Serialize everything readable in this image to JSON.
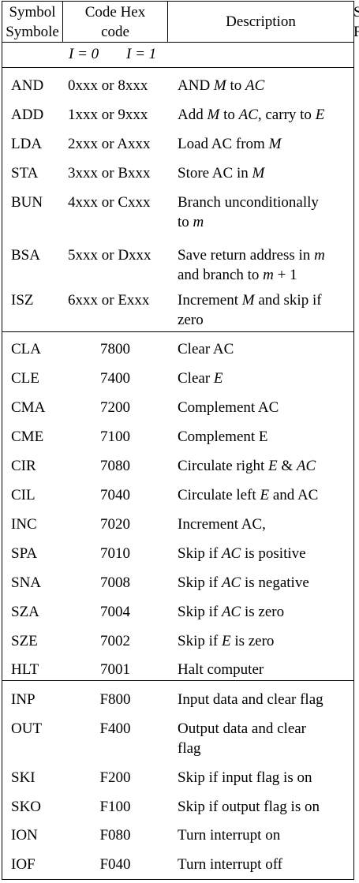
{
  "header": {
    "symbol_line1": "Symbol",
    "symbol_line2": "Symbole",
    "code_line1": "Code Hex",
    "code_line2": "code",
    "description": "Description",
    "i_zero": "I = 0",
    "i_one": "I = 1",
    "cut_top": "S",
    "cut_bottom": "F"
  },
  "rows": [
    {
      "symbol": "AND",
      "code": "0xxx or 8xxx",
      "desc": [
        {
          "t": "AND "
        },
        {
          "t": "M",
          "i": true
        },
        {
          "t": " to "
        },
        {
          "t": "AC",
          "i": true
        }
      ]
    },
    {
      "symbol": "ADD",
      "code": "1xxx or 9xxx",
      "desc": [
        {
          "t": "Add "
        },
        {
          "t": "M",
          "i": true
        },
        {
          "t": " to "
        },
        {
          "t": "AC,",
          "i": true
        },
        {
          "t": " carry to "
        },
        {
          "t": "E",
          "i": true
        }
      ]
    },
    {
      "symbol": "LDA",
      "code": "2xxx or Axxx",
      "desc": [
        {
          "t": "Load AC from  "
        },
        {
          "t": "M",
          "i": true
        }
      ]
    },
    {
      "symbol": "STA",
      "code": "3xxx or Bxxx",
      "desc": [
        {
          "t": "Store AC in "
        },
        {
          "t": "M",
          "i": true
        }
      ]
    },
    {
      "symbol": "BUN",
      "code": "4xxx or Cxxx",
      "desc": [
        {
          "t": "Branch unconditionally"
        }
      ],
      "desc2": [
        {
          "t": "to "
        },
        {
          "t": "m",
          "i": true
        }
      ]
    },
    {
      "symbol": "BSA",
      "code": "5xxx or Dxxx",
      "desc": [
        {
          "t": "Save return address in "
        },
        {
          "t": "m",
          "i": true
        }
      ],
      "desc2": [
        {
          "t": "and branch to "
        },
        {
          "t": "m",
          "i": true
        },
        {
          "t": " + 1"
        }
      ]
    },
    {
      "symbol": "ISZ",
      "code": "6xxx or Exxx",
      "desc": [
        {
          "t": "Increment "
        },
        {
          "t": "M",
          "i": true
        },
        {
          "t": " and skip if"
        }
      ],
      "desc2": [
        {
          "t": "zero"
        }
      ]
    },
    {
      "symbol": "CLA",
      "code": "7800",
      "desc": [
        {
          "t": "Clear AC"
        }
      ]
    },
    {
      "symbol": "CLE",
      "code": "7400",
      "desc": [
        {
          "t": "Clear "
        },
        {
          "t": "E",
          "i": true
        }
      ]
    },
    {
      "symbol": "CMA",
      "code": "7200",
      "desc": [
        {
          "t": "Complement AC"
        }
      ]
    },
    {
      "symbol": "CME",
      "code": "7100",
      "desc": [
        {
          "t": "Complement E"
        }
      ]
    },
    {
      "symbol": "CIR",
      "code": "7080",
      "desc": [
        {
          "t": "Circulate right "
        },
        {
          "t": "E",
          "i": true
        },
        {
          "t": " & "
        },
        {
          "t": "AC",
          "i": true
        }
      ]
    },
    {
      "symbol": "CIL",
      "code": "7040",
      "desc": [
        {
          "t": "Circulate left "
        },
        {
          "t": "E",
          "i": true
        },
        {
          "t": " and AC"
        }
      ]
    },
    {
      "symbol": "INC",
      "code": "7020",
      "desc": [
        {
          "t": "Increment AC,"
        }
      ]
    },
    {
      "symbol": "SPA",
      "code": "7010",
      "desc": [
        {
          "t": "Skip if "
        },
        {
          "t": "AC",
          "i": true
        },
        {
          "t": " is positive"
        }
      ]
    },
    {
      "symbol": "SNA",
      "code": "7008",
      "desc": [
        {
          "t": "Skip if "
        },
        {
          "t": "AC",
          "i": true
        },
        {
          "t": " is negative"
        }
      ]
    },
    {
      "symbol": "SZA",
      "code": "7004",
      "desc": [
        {
          "t": "Skip if "
        },
        {
          "t": "AC",
          "i": true
        },
        {
          "t": " is zero"
        }
      ]
    },
    {
      "symbol": "SZE",
      "code": "7002",
      "desc": [
        {
          "t": "Skip if "
        },
        {
          "t": "E",
          "i": true
        },
        {
          "t": " is zero"
        }
      ]
    },
    {
      "symbol": "HLT",
      "code": "7001",
      "desc": [
        {
          "t": "Halt computer"
        }
      ]
    },
    {
      "symbol": "INP",
      "code": "F800",
      "desc": [
        {
          "t": "Input data and clear flag"
        }
      ]
    },
    {
      "symbol": "OUT",
      "code": "F400",
      "desc": [
        {
          "t": "Output data and clear"
        }
      ],
      "desc2": [
        {
          "t": "flag"
        }
      ]
    },
    {
      "symbol": "SKI",
      "code": "F200",
      "desc": [
        {
          "t": "Skip if input flag is on"
        }
      ]
    },
    {
      "symbol": "SKO",
      "code": "F100",
      "desc": [
        {
          "t": "Skip if output flag is on"
        }
      ]
    },
    {
      "symbol": "ION",
      "code": "F080",
      "desc": [
        {
          "t": "Turn interrupt on"
        }
      ]
    },
    {
      "symbol": "IOF",
      "code": "F040",
      "desc": [
        {
          "t": "Turn interrupt off"
        }
      ]
    }
  ]
}
